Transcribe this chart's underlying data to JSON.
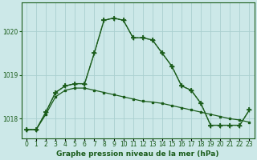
{
  "title": "Graphe pression niveau de la mer (hPa)",
  "background_color": "#cce8e8",
  "grid_color": "#aad0d0",
  "line_color": "#1a5c1a",
  "ylim": [
    1017.55,
    1020.65
  ],
  "yticks": [
    1018,
    1019,
    1020
  ],
  "xlim": [
    -0.5,
    23.5
  ],
  "series_main": [
    1017.75,
    1017.75,
    1018.15,
    1018.6,
    1018.75,
    1018.8,
    1018.8,
    1019.5,
    1020.25,
    1020.3,
    1020.25,
    1019.85,
    1019.85,
    1019.8,
    1019.5,
    1019.2,
    1018.75,
    1018.65,
    1018.35,
    1017.85,
    1017.85,
    1017.85,
    1017.85,
    1018.2
  ],
  "series_dot": [
    1017.75,
    1017.75,
    1018.15,
    1018.6,
    1018.75,
    1018.8,
    1018.8,
    1019.5,
    1020.25,
    1020.3,
    1020.25,
    1019.85,
    1019.85,
    1019.8,
    1019.5,
    1019.2,
    1018.75,
    1018.65,
    1018.35,
    1017.85,
    1017.85,
    1017.85,
    1017.85,
    1018.2
  ],
  "series_flat": [
    1017.75,
    1017.75,
    1018.1,
    1018.5,
    1018.65,
    1018.7,
    1018.7,
    1018.65,
    1018.6,
    1018.55,
    1018.5,
    1018.45,
    1018.4,
    1018.38,
    1018.35,
    1018.3,
    1018.25,
    1018.2,
    1018.15,
    1018.1,
    1018.05,
    1018.0,
    1017.97,
    1017.92
  ],
  "title_fontsize": 6.5,
  "tick_fontsize": 5.5
}
